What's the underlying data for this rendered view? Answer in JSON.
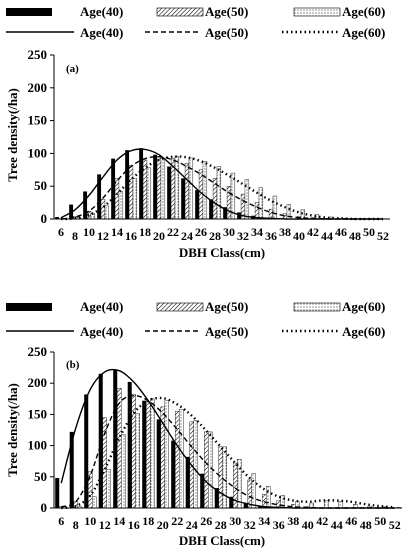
{
  "chart_data": [
    {
      "type": "bar",
      "panel_label": "(a)",
      "ylabel": "Tree density(/ha)",
      "xlabel": "DBH Class(cm)",
      "ylim": [
        0,
        250
      ],
      "yticks": [
        "0",
        "50",
        "100",
        "150",
        "200",
        "250"
      ],
      "categories": [
        "6",
        "8",
        "10",
        "12",
        "14",
        "16",
        "18",
        "20",
        "22",
        "24",
        "26",
        "28",
        "30",
        "32",
        "34",
        "36",
        "38",
        "40",
        "42",
        "44",
        "46",
        "48",
        "50",
        "52"
      ],
      "legend": {
        "bars": [
          "Age(40)",
          "Age(50)",
          "Age(60)"
        ],
        "lines": [
          "Age(40)",
          "Age(50)",
          "Age(60)"
        ]
      },
      "series": [
        {
          "name": "Age(40)",
          "kind": "bar",
          "pattern": "solid",
          "values": [
            3,
            22,
            42,
            68,
            92,
            105,
            108,
            98,
            80,
            62,
            44,
            30,
            18,
            10,
            5,
            2,
            1,
            0,
            0,
            0,
            0,
            0,
            0,
            0
          ]
        },
        {
          "name": "Age(50)",
          "kind": "bar",
          "pattern": "hatched",
          "values": [
            0,
            4,
            12,
            30,
            62,
            82,
            90,
            95,
            92,
            85,
            75,
            62,
            50,
            38,
            25,
            15,
            8,
            4,
            2,
            1,
            0,
            0,
            0,
            0
          ]
        },
        {
          "name": "Age(60)",
          "kind": "bar",
          "pattern": "dotted",
          "values": [
            0,
            2,
            8,
            20,
            42,
            62,
            78,
            92,
            95,
            93,
            88,
            80,
            70,
            60,
            48,
            35,
            22,
            14,
            7,
            3,
            1,
            0,
            0,
            0
          ]
        },
        {
          "name": "Age(40)",
          "kind": "line",
          "dash": "solid",
          "values": [
            2,
            14,
            36,
            64,
            90,
            104,
            106,
            98,
            80,
            60,
            40,
            24,
            12,
            5,
            2,
            1,
            0,
            0,
            0,
            0,
            0,
            0,
            0,
            0
          ]
        },
        {
          "name": "Age(50)",
          "kind": "line",
          "dash": "dashed",
          "values": [
            0,
            3,
            12,
            32,
            58,
            80,
            92,
            95,
            90,
            80,
            68,
            54,
            40,
            28,
            18,
            10,
            5,
            2,
            1,
            0,
            0,
            0,
            0,
            0
          ]
        },
        {
          "name": "Age(60)",
          "kind": "line",
          "dash": "dotted",
          "values": [
            0,
            1,
            6,
            18,
            38,
            60,
            78,
            90,
            95,
            94,
            88,
            78,
            66,
            53,
            40,
            28,
            18,
            10,
            5,
            2,
            1,
            0,
            0,
            0
          ]
        }
      ]
    },
    {
      "type": "bar",
      "panel_label": "(b)",
      "ylabel": "Tree density(/ha)",
      "xlabel": "DBH Class(cm)",
      "ylim": [
        0,
        250
      ],
      "yticks": [
        "0",
        "50",
        "100",
        "150",
        "200",
        "250"
      ],
      "categories": [
        "6",
        "8",
        "10",
        "12",
        "14",
        "16",
        "18",
        "20",
        "22",
        "24",
        "26",
        "28",
        "30",
        "32",
        "34",
        "36",
        "38",
        "40",
        "42",
        "44",
        "46",
        "48",
        "50",
        "52"
      ],
      "legend": {
        "bars": [
          "Age(40)",
          "Age(50)",
          "Age(60)"
        ],
        "lines": [
          "Age(40)",
          "Age(50)",
          "Age(60)"
        ]
      },
      "series": [
        {
          "name": "Age(40)",
          "kind": "bar",
          "pattern": "solid",
          "values": [
            48,
            122,
            182,
            215,
            222,
            202,
            172,
            142,
            108,
            82,
            55,
            32,
            18,
            8,
            3,
            1,
            0,
            0,
            0,
            0,
            0,
            0,
            0,
            0
          ]
        },
        {
          "name": "Age(50)",
          "kind": "bar",
          "pattern": "hatched",
          "values": [
            2,
            10,
            58,
            145,
            192,
            182,
            170,
            162,
            155,
            138,
            122,
            98,
            72,
            45,
            22,
            12,
            6,
            2,
            0,
            0,
            0,
            0,
            0,
            0
          ]
        },
        {
          "name": "Age(60)",
          "kind": "bar",
          "pattern": "dotted",
          "values": [
            0,
            2,
            18,
            62,
            118,
            152,
            175,
            172,
            158,
            140,
            122,
            98,
            78,
            55,
            35,
            20,
            10,
            8,
            12,
            10,
            6,
            3,
            2,
            1
          ]
        },
        {
          "name": "Age(40)",
          "kind": "line",
          "dash": "solid",
          "values": [
            40,
            128,
            190,
            218,
            220,
            202,
            172,
            136,
            100,
            68,
            42,
            24,
            12,
            6,
            2,
            1,
            0,
            0,
            0,
            0,
            0,
            0,
            0,
            0
          ]
        },
        {
          "name": "Age(50)",
          "kind": "line",
          "dash": "dashed",
          "values": [
            2,
            10,
            52,
            120,
            168,
            180,
            172,
            152,
            126,
            98,
            72,
            50,
            32,
            18,
            10,
            5,
            2,
            1,
            0,
            0,
            0,
            0,
            0,
            0
          ]
        },
        {
          "name": "Age(60)",
          "kind": "line",
          "dash": "dotted",
          "values": [
            0,
            3,
            20,
            62,
            112,
            152,
            172,
            176,
            166,
            148,
            124,
            98,
            72,
            48,
            30,
            18,
            12,
            10,
            12,
            12,
            10,
            6,
            3,
            1
          ]
        }
      ]
    }
  ]
}
